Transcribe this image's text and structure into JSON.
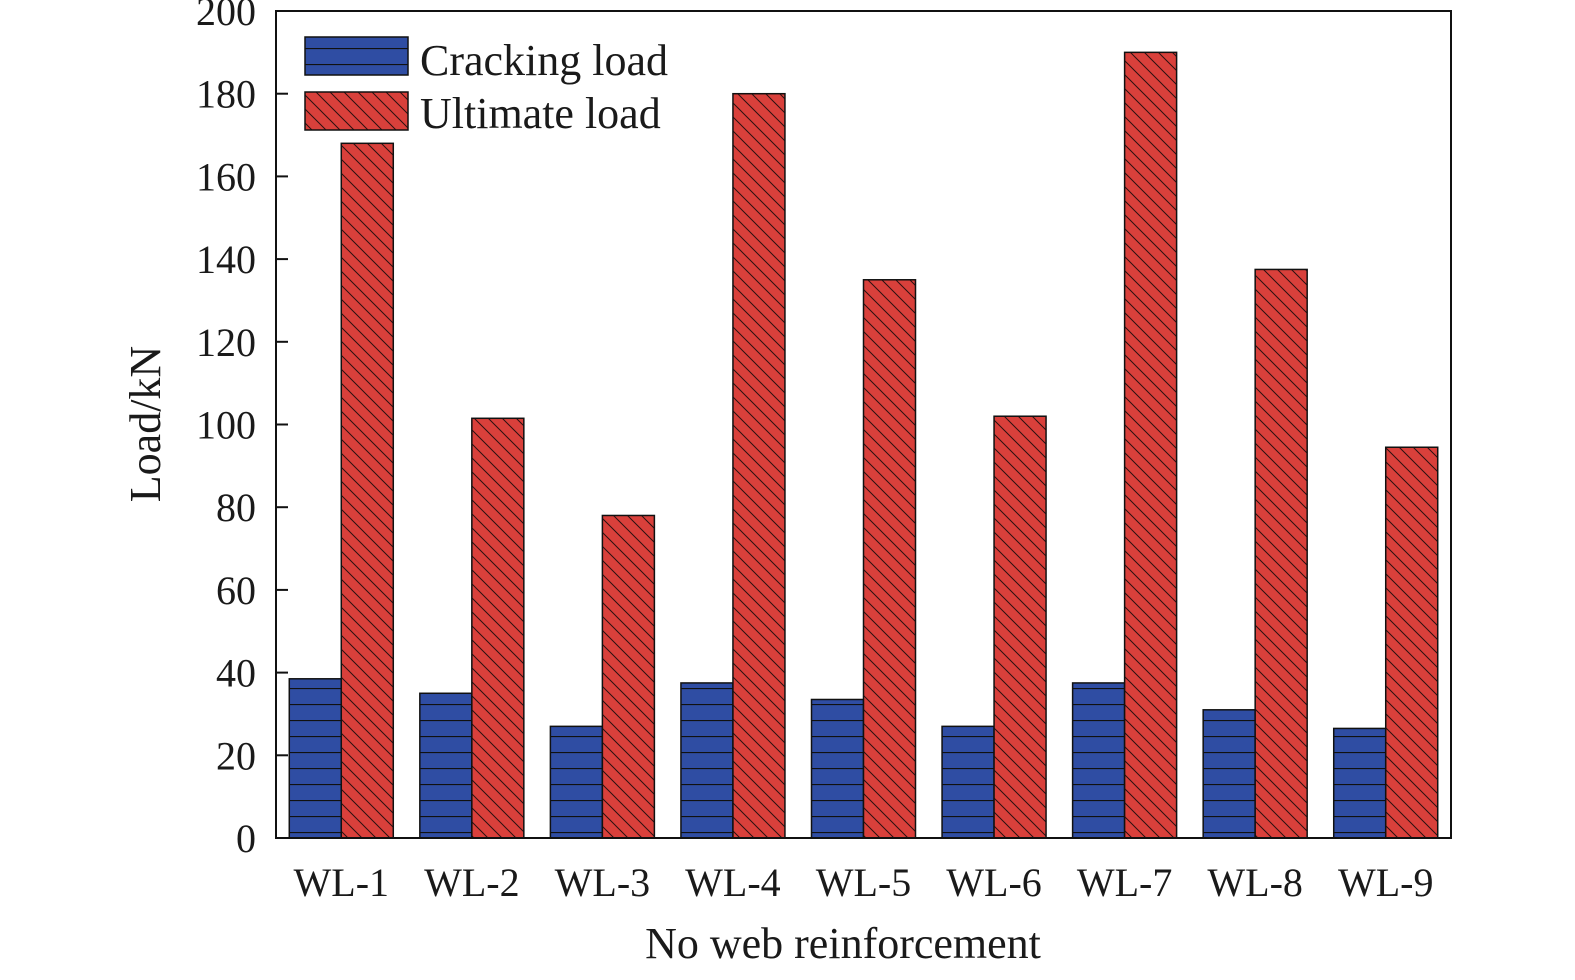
{
  "chart_data": {
    "type": "bar",
    "categories": [
      "WL-1",
      "WL-2",
      "WL-3",
      "WL-4",
      "WL-5",
      "WL-6",
      "WL-7",
      "WL-8",
      "WL-9"
    ],
    "series": [
      {
        "name": "Cracking load",
        "values": [
          38.5,
          35,
          27,
          37.5,
          33.5,
          27,
          37.5,
          31,
          26.5
        ],
        "color": "#2f4da3"
      },
      {
        "name": "Ultimate load",
        "values": [
          168,
          101.5,
          78,
          180,
          135,
          102,
          190,
          137.5,
          94.5
        ],
        "color": "#d9403b"
      }
    ],
    "xlabel": "No web reinforcement",
    "ylabel": "Load/kN",
    "ylim": [
      0,
      200
    ],
    "yticks": [
      "0",
      "20",
      "40",
      "60",
      "80",
      "100",
      "120",
      "140",
      "160",
      "180",
      "200"
    ],
    "legend_position": "top-left",
    "grid": false
  }
}
